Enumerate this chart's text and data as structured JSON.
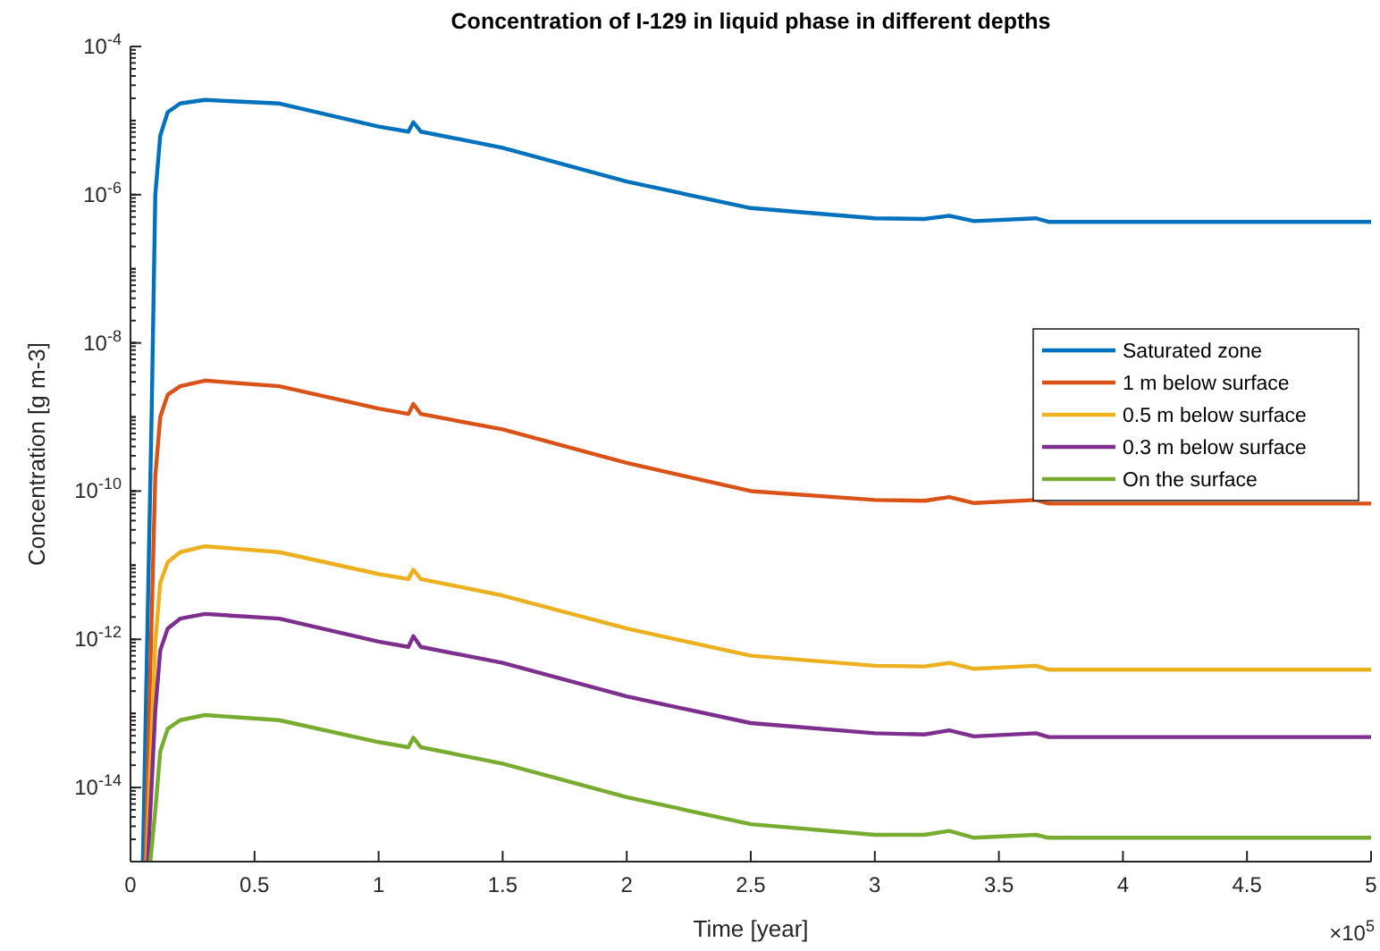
{
  "chart_data": {
    "type": "line",
    "title": "Concentration of I-129 in liquid phase in different depths",
    "xlabel": "Time [year]",
    "ylabel": "Concentration [g m-3]",
    "log": "y",
    "grid": false,
    "legend": "right",
    "line_style": "solid",
    "marker": "none",
    "xlim": [
      0,
      5
    ],
    "ylim": [
      1e-15,
      0.0001
    ],
    "xticks": [
      0,
      0.5,
      1,
      1.5,
      2,
      2.5,
      3,
      3.5,
      4,
      4.5,
      5
    ],
    "yticks": [
      {
        "value": 1e-14,
        "label": "10$^{-14}$"
      },
      {
        "value": 1e-12,
        "label": "10$^{-12}$"
      },
      {
        "value": 1e-10,
        "label": "10$^{-10}$"
      },
      {
        "value": 1e-08,
        "label": "10$^{-8}$"
      },
      {
        "value": 1e-06,
        "label": "10$^{-6}$"
      },
      {
        "value": 0.0001,
        "label": "10$^{-4}$"
      }
    ],
    "annotations": [
      "×10$^{5}$"
    ],
    "series": [
      {
        "name": "Saturated zone",
        "color": "#0072bd",
        "x": [
          0.05,
          0.085,
          0.1,
          0.12,
          0.15,
          0.2,
          0.3,
          0.6,
          1.0,
          1.12,
          1.14,
          1.17,
          1.5,
          2.0,
          2.5,
          3.0,
          3.2,
          3.3,
          3.4,
          3.65,
          3.7,
          5.0
        ],
        "values": [
          1e-15,
          1e-09,
          1e-06,
          6.3e-06,
          1.3e-05,
          1.7e-05,
          1.9e-05,
          1.7e-05,
          8.3e-06,
          7.1e-06,
          9.5e-06,
          7.1e-06,
          4.3e-06,
          1.5e-06,
          6.6e-07,
          4.8e-07,
          4.7e-07,
          5.2e-07,
          4.4e-07,
          4.8e-07,
          4.3e-07,
          4.3e-07
        ]
      },
      {
        "name": "1 m below surface",
        "color": "#d95319",
        "x": [
          0.06,
          0.1,
          0.12,
          0.15,
          0.2,
          0.3,
          0.6,
          1.0,
          1.12,
          1.14,
          1.17,
          1.5,
          2.0,
          2.5,
          3.0,
          3.2,
          3.3,
          3.4,
          3.65,
          3.7,
          5.0
        ],
        "values": [
          1e-15,
          1.6e-10,
          1e-09,
          2e-09,
          2.6e-09,
          3.1e-09,
          2.6e-09,
          1.3e-09,
          1.1e-09,
          1.5e-09,
          1.1e-09,
          6.8e-10,
          2.4e-10,
          1e-10,
          7.6e-11,
          7.4e-11,
          8.3e-11,
          6.9e-11,
          7.6e-11,
          6.8e-11,
          6.8e-11
        ]
      },
      {
        "name": "0.5 m below surface",
        "color": "#edb120",
        "x": [
          0.065,
          0.1,
          0.12,
          0.15,
          0.2,
          0.3,
          0.6,
          1.0,
          1.12,
          1.14,
          1.17,
          1.5,
          2.0,
          2.5,
          3.0,
          3.2,
          3.3,
          3.4,
          3.65,
          3.7,
          5.0
        ],
        "values": [
          1e-15,
          9.1e-13,
          5.8e-12,
          1.1e-11,
          1.5e-11,
          1.8e-11,
          1.5e-11,
          7.6e-12,
          6.5e-12,
          8.7e-12,
          6.5e-12,
          3.9e-12,
          1.4e-12,
          6e-13,
          4.4e-13,
          4.3e-13,
          4.8e-13,
          4e-13,
          4.4e-13,
          3.9e-13,
          3.9e-13
        ]
      },
      {
        "name": "0.3 m below surface",
        "color": "#7e2f8e",
        "x": [
          0.07,
          0.1,
          0.12,
          0.15,
          0.2,
          0.3,
          0.6,
          1.0,
          1.12,
          1.14,
          1.17,
          1.5,
          2.0,
          2.5,
          3.0,
          3.2,
          3.3,
          3.4,
          3.65,
          3.7,
          5.0
        ],
        "values": [
          1e-15,
          1.1e-13,
          7.1e-13,
          1.4e-12,
          1.9e-12,
          2.2e-12,
          1.9e-12,
          9.3e-13,
          7.9e-13,
          1.1e-12,
          7.9e-13,
          4.8e-13,
          1.7e-13,
          7.4e-14,
          5.4e-14,
          5.2e-14,
          5.9e-14,
          4.9e-14,
          5.4e-14,
          4.8e-14,
          4.8e-14
        ]
      },
      {
        "name": "On the surface",
        "color": "#77ac30",
        "x": [
          0.08,
          0.1,
          0.12,
          0.15,
          0.2,
          0.3,
          0.6,
          1.0,
          1.12,
          1.14,
          1.17,
          1.5,
          2.0,
          2.5,
          3.0,
          3.2,
          3.3,
          3.4,
          3.65,
          3.7,
          5.0
        ],
        "values": [
          1e-15,
          4.9e-15,
          3.1e-14,
          6.2e-14,
          8.1e-14,
          9.5e-14,
          8.1e-14,
          4.1e-14,
          3.5e-14,
          4.7e-14,
          3.5e-14,
          2.1e-14,
          7.4e-15,
          3.2e-15,
          2.3e-15,
          2.3e-15,
          2.6e-15,
          2.1e-15,
          2.3e-15,
          2.1e-15,
          2.1e-15
        ]
      }
    ]
  }
}
